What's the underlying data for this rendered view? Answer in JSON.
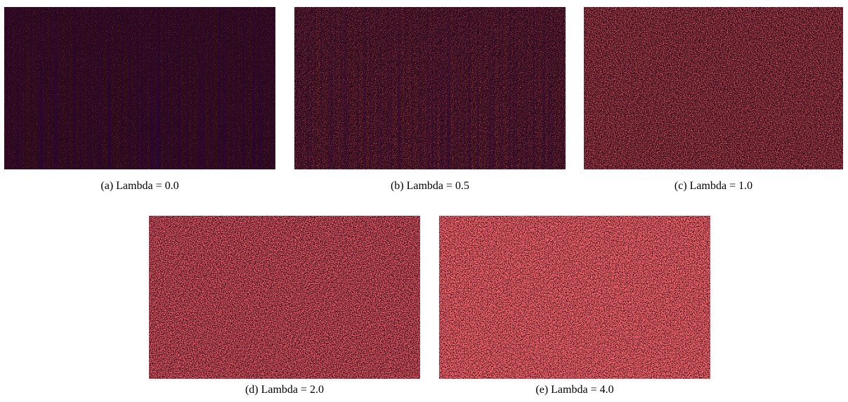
{
  "figure": {
    "panels": [
      {
        "caption": "(a) Lambda = 0.0"
      },
      {
        "caption": "(b) Lambda = 0.5"
      },
      {
        "caption": "(c) Lambda = 1.0"
      },
      {
        "caption": "(d) Lambda = 2.0"
      },
      {
        "caption": "(e) Lambda = 4.0"
      }
    ]
  }
}
